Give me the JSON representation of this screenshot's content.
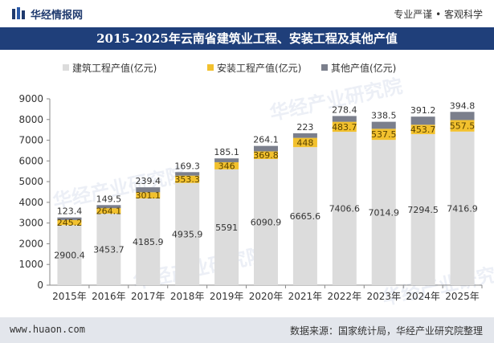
{
  "header": {
    "brand": "华经情报网",
    "tagline": "专业严谨 • 客观科学"
  },
  "title": "2015-2025年云南省建筑业工程、安装工程及其他产值",
  "footer": {
    "website": "www.huaon.com",
    "source": "数据来源：国家统计局，华经产业研究院整理"
  },
  "watermark": "华经产业研究院",
  "colors": {
    "construction": "#dcdcdc",
    "installation": "#f2c12e",
    "other": "#7b7f8c",
    "header_bg": "#1f3f7a",
    "footer_bg": "#e3e6ec"
  },
  "chart_data": {
    "type": "bar",
    "stacked": true,
    "title": "2015-2025年云南省建筑业工程、安装工程及其他产值",
    "categories": [
      "2015年",
      "2016年",
      "2017年",
      "2018年",
      "2019年",
      "2020年",
      "2021年",
      "2022年",
      "2023年",
      "2024年",
      "2025年"
    ],
    "series": [
      {
        "name": "建筑工程产值(亿元)",
        "values": [
          2900.4,
          3453.7,
          4185.9,
          4935.9,
          5591,
          6090.9,
          6665.6,
          7406.6,
          7014.9,
          7294.5,
          7416.9
        ],
        "labels": [
          "2900.4",
          "3453.7",
          "4185.9",
          "4935.9",
          "5591",
          "6090.9",
          "6665.6",
          "7406.6",
          "7014.9",
          "7294.5",
          "7416.9"
        ]
      },
      {
        "name": "安装工程产值(亿元)",
        "values": [
          245.2,
          264.1,
          301.1,
          353.3,
          346,
          369.8,
          448,
          483.7,
          537.5,
          453.7,
          557.5
        ],
        "labels": [
          "245.2",
          "264.1",
          "301.1",
          "353.3",
          "346",
          "369.8",
          "448",
          "483.7",
          "537.5",
          "453.7",
          "557.5"
        ]
      },
      {
        "name": "其他产值(亿元)",
        "values": [
          123.4,
          149.5,
          239.4,
          169.3,
          185.1,
          264.1,
          223,
          278.4,
          338.5,
          391.2,
          394.8
        ],
        "labels": [
          "123.4",
          "149.5",
          "239.4",
          "169.3",
          "185.1",
          "264.1",
          "223",
          "278.4",
          "338.5",
          "391.2",
          "394.8"
        ]
      }
    ],
    "ylim": [
      0,
      9000
    ],
    "yticks": [
      "0",
      "1000",
      "2000",
      "3000",
      "4000",
      "5000",
      "6000",
      "7000",
      "8000",
      "9000"
    ],
    "xlabel": "",
    "ylabel": "",
    "legend_position": "top-left",
    "grid": false
  }
}
